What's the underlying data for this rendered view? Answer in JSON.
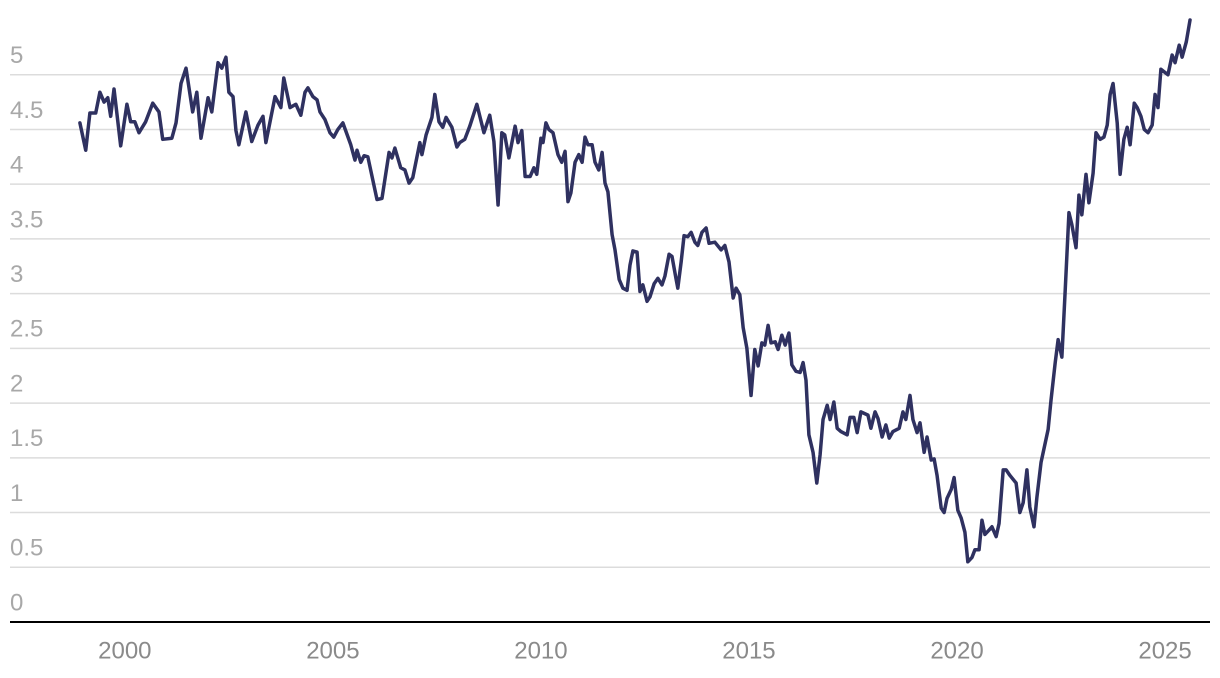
{
  "chart_data": {
    "type": "line",
    "color": "#2f3160",
    "grid": true,
    "xlim": [
      1997.24,
      2026.08
    ],
    "xticks": [
      2000,
      2005,
      2010,
      2015,
      2020,
      2025
    ],
    "ylim": [
      0,
      5.5
    ],
    "yticks": [
      0,
      0.5,
      1,
      1.5,
      2,
      2.5,
      3,
      3.5,
      4,
      4.5,
      5
    ],
    "x": [
      1998.92,
      1999.06,
      1999.16,
      1999.3,
      1999.4,
      1999.5,
      1999.59,
      1999.66,
      1999.74,
      1999.9,
      2000.05,
      2000.14,
      2000.24,
      2000.34,
      2000.5,
      2000.67,
      2000.82,
      2000.91,
      2001.13,
      2001.23,
      2001.35,
      2001.47,
      2001.63,
      2001.73,
      2001.83,
      2002.0,
      2002.09,
      2002.24,
      2002.33,
      2002.43,
      2002.5,
      2002.6,
      2002.67,
      2002.74,
      2002.91,
      2003.05,
      2003.2,
      2003.32,
      2003.39,
      2003.61,
      2003.75,
      2003.82,
      2003.97,
      2004.11,
      2004.23,
      2004.33,
      2004.4,
      2004.52,
      2004.62,
      2004.69,
      2004.81,
      2004.93,
      2005.02,
      2005.12,
      2005.24,
      2005.43,
      2005.53,
      2005.58,
      2005.67,
      2005.75,
      2005.84,
      2006.06,
      2006.18,
      2006.35,
      2006.42,
      2006.49,
      2006.63,
      2006.73,
      2006.83,
      2006.92,
      2007.09,
      2007.14,
      2007.24,
      2007.38,
      2007.45,
      2007.55,
      2007.64,
      2007.72,
      2007.86,
      2007.98,
      2008.05,
      2008.17,
      2008.29,
      2008.46,
      2008.63,
      2008.77,
      2008.87,
      2008.97,
      2009.06,
      2009.13,
      2009.23,
      2009.38,
      2009.45,
      2009.54,
      2009.62,
      2009.74,
      2009.83,
      2009.9,
      2010.0,
      2010.05,
      2010.12,
      2010.19,
      2010.29,
      2010.41,
      2010.5,
      2010.58,
      2010.65,
      2010.72,
      2010.82,
      2010.91,
      2010.99,
      2011.06,
      2011.13,
      2011.23,
      2011.3,
      2011.39,
      2011.47,
      2011.54,
      2011.61,
      2011.71,
      2011.78,
      2011.88,
      2011.97,
      2012.07,
      2012.14,
      2012.21,
      2012.31,
      2012.38,
      2012.45,
      2012.55,
      2012.62,
      2012.72,
      2012.81,
      2012.91,
      2012.98,
      2013.08,
      2013.15,
      2013.25,
      2013.29,
      2013.37,
      2013.44,
      2013.53,
      2013.61,
      2013.7,
      2013.77,
      2013.87,
      2013.97,
      2014.04,
      2014.18,
      2014.33,
      2014.42,
      2014.52,
      2014.62,
      2014.69,
      2014.78,
      2014.86,
      2014.95,
      2015.05,
      2015.14,
      2015.22,
      2015.31,
      2015.38,
      2015.46,
      2015.53,
      2015.63,
      2015.7,
      2015.79,
      2015.87,
      2015.96,
      2016.03,
      2016.13,
      2016.23,
      2016.3,
      2016.37,
      2016.44,
      2016.54,
      2016.63,
      2016.71,
      2016.78,
      2016.88,
      2016.95,
      2017.04,
      2017.12,
      2017.21,
      2017.36,
      2017.43,
      2017.52,
      2017.6,
      2017.69,
      2017.86,
      2017.93,
      2018.03,
      2018.1,
      2018.2,
      2018.29,
      2018.37,
      2018.46,
      2018.61,
      2018.7,
      2018.77,
      2018.87,
      2018.94,
      2019.04,
      2019.11,
      2019.21,
      2019.28,
      2019.38,
      2019.45,
      2019.52,
      2019.62,
      2019.69,
      2019.76,
      2019.86,
      2019.93,
      2020.02,
      2020.1,
      2020.19,
      2020.26,
      2020.36,
      2020.43,
      2020.53,
      2020.6,
      2020.67,
      2020.77,
      2020.84,
      2020.94,
      2021.01,
      2021.11,
      2021.18,
      2021.27,
      2021.42,
      2021.51,
      2021.59,
      2021.68,
      2021.75,
      2021.85,
      2021.92,
      2022.02,
      2022.19,
      2022.26,
      2022.36,
      2022.43,
      2022.52,
      2022.6,
      2022.69,
      2022.76,
      2022.86,
      2022.93,
      2023.0,
      2023.1,
      2023.17,
      2023.27,
      2023.34,
      2023.44,
      2023.53,
      2023.61,
      2023.68,
      2023.75,
      2023.85,
      2023.92,
      2024.01,
      2024.09,
      2024.16,
      2024.26,
      2024.33,
      2024.42,
      2024.5,
      2024.59,
      2024.69,
      2024.76,
      2024.83,
      2024.9,
      2025.0,
      2025.07,
      2025.17,
      2025.24,
      2025.34,
      2025.41,
      2025.51,
      2025.6
    ],
    "values": [
      4.56,
      4.31,
      4.65,
      4.65,
      4.84,
      4.75,
      4.79,
      4.62,
      4.87,
      4.35,
      4.73,
      4.57,
      4.57,
      4.47,
      4.57,
      4.74,
      4.66,
      4.41,
      4.42,
      4.56,
      4.92,
      5.06,
      4.66,
      4.84,
      4.42,
      4.79,
      4.66,
      5.11,
      5.06,
      5.16,
      4.84,
      4.8,
      4.49,
      4.36,
      4.66,
      4.39,
      4.54,
      4.62,
      4.38,
      4.8,
      4.7,
      4.97,
      4.7,
      4.73,
      4.63,
      4.84,
      4.88,
      4.8,
      4.77,
      4.66,
      4.59,
      4.47,
      4.43,
      4.5,
      4.56,
      4.36,
      4.22,
      4.31,
      4.2,
      4.26,
      4.25,
      3.86,
      3.87,
      4.29,
      4.24,
      4.33,
      4.15,
      4.13,
      4.01,
      4.06,
      4.38,
      4.27,
      4.45,
      4.61,
      4.82,
      4.57,
      4.52,
      4.61,
      4.52,
      4.34,
      4.38,
      4.41,
      4.53,
      4.73,
      4.47,
      4.63,
      4.39,
      3.81,
      4.47,
      4.45,
      4.24,
      4.53,
      4.38,
      4.49,
      4.07,
      4.07,
      4.15,
      4.09,
      4.42,
      4.38,
      4.56,
      4.5,
      4.47,
      4.27,
      4.2,
      4.3,
      3.84,
      3.92,
      4.2,
      4.27,
      4.2,
      4.43,
      4.36,
      4.36,
      4.2,
      4.13,
      4.29,
      4.01,
      3.93,
      3.54,
      3.4,
      3.13,
      3.05,
      3.03,
      3.26,
      3.39,
      3.38,
      3.02,
      3.08,
      2.93,
      2.97,
      3.09,
      3.14,
      3.08,
      3.16,
      3.36,
      3.34,
      3.13,
      3.05,
      3.29,
      3.53,
      3.52,
      3.56,
      3.47,
      3.44,
      3.56,
      3.6,
      3.46,
      3.47,
      3.4,
      3.44,
      3.29,
      2.96,
      3.05,
      2.99,
      2.69,
      2.5,
      2.07,
      2.49,
      2.34,
      2.55,
      2.53,
      2.71,
      2.55,
      2.56,
      2.49,
      2.62,
      2.53,
      2.64,
      2.35,
      2.29,
      2.28,
      2.37,
      2.21,
      1.71,
      1.55,
      1.27,
      1.53,
      1.85,
      1.98,
      1.85,
      2.01,
      1.77,
      1.74,
      1.71,
      1.87,
      1.87,
      1.73,
      1.92,
      1.89,
      1.77,
      1.92,
      1.86,
      1.69,
      1.8,
      1.68,
      1.74,
      1.77,
      1.92,
      1.85,
      2.07,
      1.85,
      1.73,
      1.82,
      1.55,
      1.69,
      1.48,
      1.49,
      1.34,
      1.04,
      1.0,
      1.13,
      1.21,
      1.32,
      1.02,
      0.95,
      0.82,
      0.55,
      0.59,
      0.66,
      0.66,
      0.93,
      0.8,
      0.84,
      0.87,
      0.78,
      0.9,
      1.39,
      1.39,
      1.34,
      1.27,
      1.0,
      1.09,
      1.39,
      1.05,
      0.87,
      1.14,
      1.46,
      1.76,
      2.03,
      2.37,
      2.58,
      2.42,
      3.03,
      3.74,
      3.63,
      3.42,
      3.9,
      3.72,
      4.09,
      3.83,
      4.1,
      4.47,
      4.41,
      4.43,
      4.54,
      4.82,
      4.92,
      4.56,
      4.09,
      4.41,
      4.52,
      4.36,
      4.74,
      4.7,
      4.62,
      4.5,
      4.47,
      4.54,
      4.82,
      4.7,
      5.05,
      5.02,
      5.0,
      5.18,
      5.11,
      5.27,
      5.16,
      5.3,
      5.5
    ]
  }
}
